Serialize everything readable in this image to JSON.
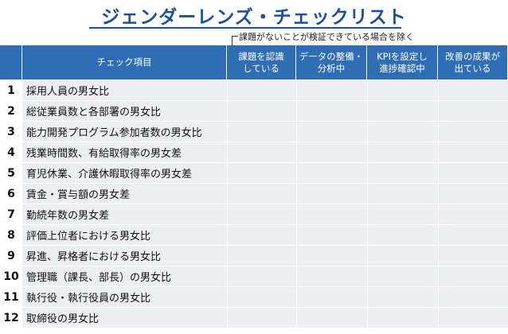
{
  "header": {
    "title": "ジェンダーレンズ・チェックリスト",
    "note": "課題がないことが検証できている場合を除く"
  },
  "table": {
    "columns": [
      [
        "チェック項目"
      ],
      [
        "課題を認識",
        "している"
      ],
      [
        "データの整備・",
        "分析中"
      ],
      [
        "KPIを設定し",
        "進捗確認中"
      ],
      [
        "改善の成果が",
        "出ている"
      ]
    ],
    "rows": [
      [
        1,
        "採用人員の男女比"
      ],
      [
        2,
        "総従業員数と各部署の男女比"
      ],
      [
        3,
        "能力開発プログラム参加者数の男女比"
      ],
      [
        4,
        "残業時間数、有給取得率の男女差"
      ],
      [
        5,
        "育児休業、介護休暇取得率の男女差"
      ],
      [
        6,
        "賃金・賞与額の男女差"
      ],
      [
        7,
        "勤続年数の男女差"
      ],
      [
        8,
        "評価上位者における男女比"
      ],
      [
        9,
        "昇進、昇格者における男女比"
      ],
      [
        10,
        "管理職（課長、部長）の男女比"
      ],
      [
        11,
        "執行役・執行役員の男女比"
      ],
      [
        12,
        "取締役の男女比"
      ]
    ]
  }
}
